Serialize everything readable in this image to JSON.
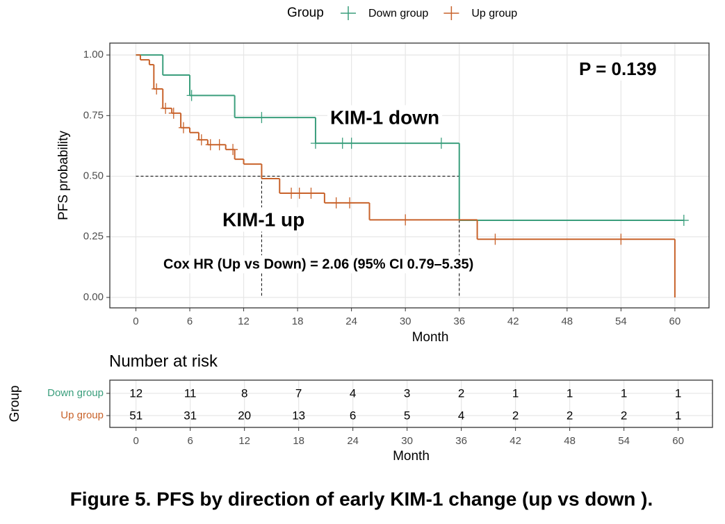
{
  "chart_data": {
    "type": "step",
    "legend_title": "Group",
    "xlabel": "Month",
    "ylabel": "PFS probability",
    "xlim": [
      -2.9,
      63.8
    ],
    "ylim": [
      -0.043,
      1.049
    ],
    "xticks": [
      0,
      6,
      12,
      18,
      24,
      30,
      36,
      42,
      48,
      54,
      60
    ],
    "yticks": [
      {
        "value": 0,
        "label": "0.00"
      },
      {
        "value": 0.25,
        "label": "0.25"
      },
      {
        "value": 0.5,
        "label": "0.50"
      },
      {
        "value": 0.75,
        "label": "0.75"
      },
      {
        "value": 1,
        "label": "1.00"
      }
    ],
    "grid": true,
    "series": [
      {
        "name": "Down group",
        "color": "#3a9e7c",
        "x": [
          0,
          3,
          6,
          11,
          20,
          36,
          61
        ],
        "values": [
          1,
          0.917,
          0.833,
          0.742,
          0.636,
          0.318,
          0.318
        ],
        "censored": {
          "x": [
            6.2,
            14,
            20,
            23,
            24,
            34,
            61
          ],
          "values": [
            0.833,
            0.742,
            0.636,
            0.636,
            0.636,
            0.636,
            0.318
          ]
        }
      },
      {
        "name": "Up group",
        "color": "#c8622a",
        "x": [
          0,
          0.5,
          1.5,
          2,
          3,
          4,
          5,
          6,
          7,
          8,
          10,
          11,
          12,
          14,
          16,
          21,
          26,
          38,
          60
        ],
        "values": [
          1,
          0.98,
          0.96,
          0.86,
          0.78,
          0.76,
          0.7,
          0.68,
          0.65,
          0.63,
          0.61,
          0.57,
          0.55,
          0.49,
          0.43,
          0.39,
          0.32,
          0.24,
          0
        ],
        "censored": {
          "x": [
            2.3,
            3.3,
            4.2,
            5.3,
            7.3,
            8.3,
            9.3,
            10.8,
            17.3,
            18.2,
            19.5,
            22.3,
            23.8,
            30,
            40,
            54
          ],
          "values": [
            0.86,
            0.78,
            0.76,
            0.7,
            0.65,
            0.63,
            0.63,
            0.61,
            0.43,
            0.43,
            0.43,
            0.39,
            0.39,
            0.32,
            0.24,
            0.24
          ]
        }
      }
    ],
    "median_line": {
      "y": 0.5,
      "x": [
        14,
        36
      ]
    },
    "annotations": [
      "P = 0.139",
      "KIM-1 down",
      "KIM-1 up",
      "Cox HR (Up vs Down) = 2.06 (95% CI 0.79–5.35)"
    ],
    "risk_table": {
      "title": "Number at risk",
      "ylabel": "Group",
      "xlabel": "Month",
      "times": [
        0,
        6,
        12,
        18,
        24,
        30,
        36,
        42,
        48,
        54,
        60
      ],
      "rows": [
        {
          "name": "Down group",
          "color": "#3a9e7c",
          "counts": [
            12,
            11,
            8,
            7,
            4,
            3,
            2,
            1,
            1,
            1,
            1
          ]
        },
        {
          "name": "Up group",
          "color": "#c8622a",
          "counts": [
            51,
            31,
            20,
            13,
            6,
            5,
            4,
            2,
            2,
            2,
            1
          ]
        }
      ]
    }
  },
  "caption": "Figure 5. PFS by direction of early KIM-1 change (up  vs down )."
}
